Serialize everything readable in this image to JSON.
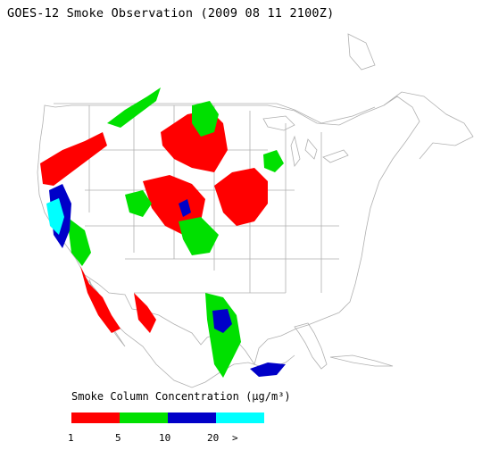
{
  "title": "GOES-12 Smoke Observation (2009 08 11  2100Z)",
  "legend": {
    "title": "Smoke Column Concentration (μg/m³)",
    "bins": [
      {
        "color": "#ff0000",
        "label": "1"
      },
      {
        "color": "#00e000",
        "label": "5"
      },
      {
        "color": "#0000c8",
        "label": "10"
      },
      {
        "color": "#00ffff",
        "label": "20"
      }
    ],
    "overflow_label": ">"
  },
  "map": {
    "boundary_color": "#b0b0b0",
    "region": "Contiguous United States with southern Canada and northern Mexico"
  }
}
